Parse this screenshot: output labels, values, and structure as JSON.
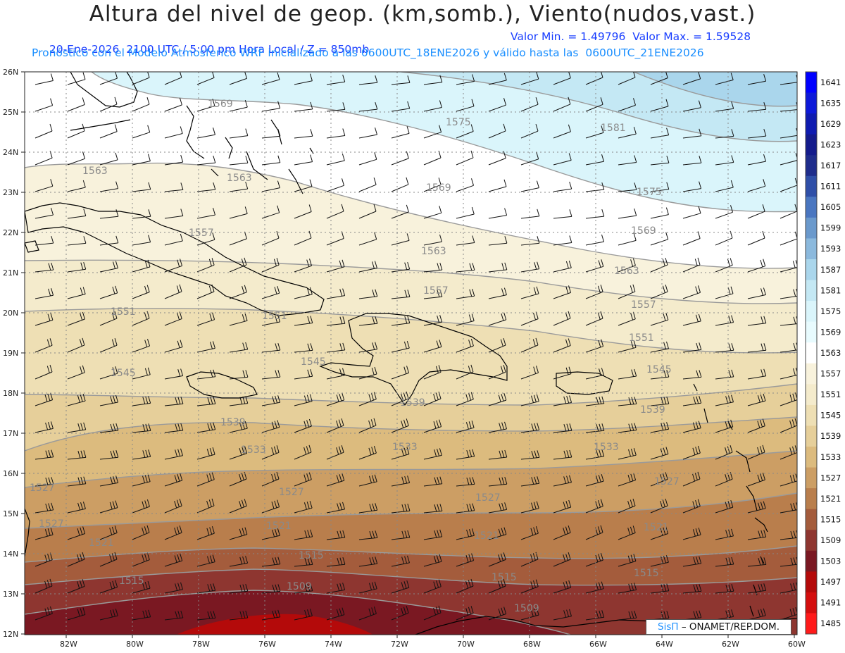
{
  "header": {
    "title": "Altura del nivel de geop. (km,somb.), Viento(nudos,vast.)",
    "date_line": "20-Ene-2026  2100 UTC / 5:00 pm Hora Local / Z = 850mb",
    "minmax_line": "Valor Min. = 1.49796  Valor Max. = 1.59528",
    "model_line": "Pronóstico con el Modelo Atmosferico WRF inicializado a las 0600UTC_18ENE2026 y válido hasta las  0600UTC_21ENE2026"
  },
  "axes": {
    "lat_labels": [
      "26N",
      "25N",
      "24N",
      "23N",
      "22N",
      "21N",
      "20N",
      "19N",
      "18N",
      "17N",
      "16N",
      "15N",
      "14N",
      "13N",
      "12N"
    ],
    "lon_labels": [
      "82W",
      "80W",
      "78W",
      "76W",
      "74W",
      "72W",
      "70W",
      "68W",
      "66W",
      "64W",
      "62W",
      "60W"
    ]
  },
  "colorbar": {
    "labels": [
      "1641",
      "1635",
      "1629",
      "1623",
      "1617",
      "1611",
      "1605",
      "1599",
      "1593",
      "1587",
      "1581",
      "1575",
      "1569",
      "1563",
      "1557",
      "1551",
      "1545",
      "1539",
      "1533",
      "1527",
      "1521",
      "1515",
      "1509",
      "1503",
      "1497",
      "1491",
      "1485"
    ],
    "colors": [
      "#0000ff",
      "#0d19d9",
      "#0f1bb0",
      "#141b8c",
      "#1f2d8c",
      "#2f4fa8",
      "#4a76c0",
      "#6a99cc",
      "#8bb9dd",
      "#aad6ec",
      "#c4e8f4",
      "#daf5fb",
      "#e8fbfe",
      "#ffffff",
      "#f8f2dc",
      "#f4ebcc",
      "#eedfb4",
      "#e6cf9a",
      "#dcbb7e",
      "#cc9e64",
      "#b97e4c",
      "#a45c3c",
      "#8e3630",
      "#7a1822",
      "#b40a0a",
      "#d40e0e",
      "#ff1a1a"
    ]
  },
  "contour_labels": [
    {
      "text": "1569"
    },
    {
      "text": "1575"
    },
    {
      "text": "1581"
    },
    {
      "text": "1563"
    },
    {
      "text": "1563"
    },
    {
      "text": "1569"
    },
    {
      "text": "1575"
    },
    {
      "text": "1569"
    },
    {
      "text": "1563"
    },
    {
      "text": "1563"
    },
    {
      "text": "1557"
    },
    {
      "text": "1557"
    },
    {
      "text": "1551"
    },
    {
      "text": "1551"
    },
    {
      "text": "1551"
    },
    {
      "text": "1545"
    },
    {
      "text": "1545"
    },
    {
      "text": "1545"
    },
    {
      "text": "1539"
    },
    {
      "text": "1539"
    },
    {
      "text": "1539"
    },
    {
      "text": "1533"
    },
    {
      "text": "1533"
    },
    {
      "text": "1533"
    },
    {
      "text": "1527"
    },
    {
      "text": "1527"
    },
    {
      "text": "1527"
    },
    {
      "text": "1521"
    },
    {
      "text": "1521"
    },
    {
      "text": "1521"
    },
    {
      "text": "1521"
    },
    {
      "text": "1515"
    },
    {
      "text": "1515"
    },
    {
      "text": "1515"
    },
    {
      "text": "1515"
    },
    {
      "text": "1509"
    },
    {
      "text": "1509"
    },
    {
      "text": "1527"
    },
    {
      "text": "1557"
    },
    {
      "text": "1527"
    }
  ],
  "credit": {
    "brand": "SisΠ",
    "text": "– ONAMET/REP.DOM."
  }
}
